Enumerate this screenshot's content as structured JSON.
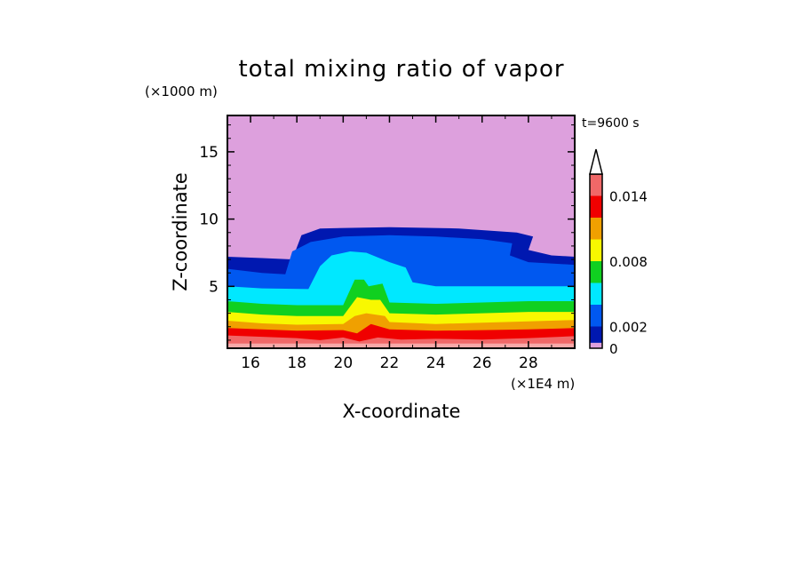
{
  "chart_data": {
    "type": "contour",
    "title": "total mixing ratio of vapor",
    "xlabel": "X-coordinate",
    "ylabel": "Z-coordinate",
    "x_unit": "(×1E4 m)",
    "y_unit": "(×1000 m)",
    "time_label": "t=9600 s",
    "xlim": [
      15,
      30
    ],
    "ylim": [
      0.4,
      17.7
    ],
    "x_ticks": [
      "16",
      "18",
      "20",
      "22",
      "24",
      "26",
      "28"
    ],
    "x_tick_values": [
      16,
      18,
      20,
      22,
      24,
      26,
      28
    ],
    "y_ticks": [
      "5",
      "10",
      "15"
    ],
    "y_tick_values": [
      5,
      10,
      15
    ],
    "colorbar": {
      "levels": [
        0,
        0.0005,
        0.002,
        0.004,
        0.006,
        0.008,
        0.01,
        0.012,
        0.014,
        0.016
      ],
      "tick_labels": [
        "0",
        "0.002",
        "0.008",
        "0.014"
      ],
      "tick_values": [
        0,
        0.002,
        0.008,
        0.014
      ],
      "colors": [
        "#dda0dd",
        "#0018b0",
        "#0058f0",
        "#00e8ff",
        "#10d020",
        "#f8f800",
        "#f0a000",
        "#f00000",
        "#f06868",
        "#f8a8a8"
      ],
      "extend_max": true
    },
    "layers": [
      {
        "level": 0.0005,
        "color": "#0018b0",
        "top": [
          [
            15,
            7.2
          ],
          [
            16.5,
            7.1
          ],
          [
            17.8,
            7.0
          ],
          [
            18.2,
            8.8
          ],
          [
            19,
            9.3
          ],
          [
            22,
            9.4
          ],
          [
            25,
            9.3
          ],
          [
            27.5,
            9.0
          ],
          [
            28.2,
            8.7
          ],
          [
            28,
            7.7
          ],
          [
            29,
            7.3
          ],
          [
            30,
            7.2
          ]
        ]
      },
      {
        "level": 0.002,
        "color": "#0058f0",
        "top": [
          [
            15,
            6.3
          ],
          [
            16.5,
            6.0
          ],
          [
            17.5,
            5.9
          ],
          [
            17.8,
            7.6
          ],
          [
            18.6,
            8.3
          ],
          [
            20,
            8.7
          ],
          [
            22,
            8.8
          ],
          [
            24,
            8.7
          ],
          [
            26,
            8.5
          ],
          [
            27.3,
            8.2
          ],
          [
            27.2,
            7.3
          ],
          [
            28,
            6.8
          ],
          [
            29,
            6.7
          ],
          [
            30,
            6.6
          ]
        ]
      },
      {
        "level": 0.004,
        "color": "#00e8ff",
        "top": [
          [
            15,
            5.0
          ],
          [
            16.5,
            4.85
          ],
          [
            18.5,
            4.8
          ],
          [
            19,
            6.5
          ],
          [
            19.5,
            7.3
          ],
          [
            20.3,
            7.6
          ],
          [
            21,
            7.5
          ],
          [
            22,
            6.8
          ],
          [
            22.7,
            6.4
          ],
          [
            23,
            5.3
          ],
          [
            24,
            5.0
          ],
          [
            26,
            5.0
          ],
          [
            28,
            5.0
          ],
          [
            30,
            5.0
          ]
        ]
      },
      {
        "level": 0.006,
        "color": "#10d020",
        "top": [
          [
            15,
            3.9
          ],
          [
            16.5,
            3.7
          ],
          [
            18,
            3.6
          ],
          [
            20,
            3.6
          ],
          [
            20.5,
            5.5
          ],
          [
            20.9,
            5.5
          ],
          [
            21.1,
            5.0
          ],
          [
            21.7,
            5.2
          ],
          [
            22,
            3.8
          ],
          [
            24,
            3.7
          ],
          [
            26,
            3.8
          ],
          [
            28,
            3.9
          ],
          [
            30,
            3.9
          ]
        ]
      },
      {
        "level": 0.008,
        "color": "#f8f800",
        "top": [
          [
            15,
            3.1
          ],
          [
            16.5,
            2.9
          ],
          [
            18,
            2.8
          ],
          [
            20,
            2.8
          ],
          [
            20.6,
            4.2
          ],
          [
            21.2,
            4.0
          ],
          [
            21.6,
            4.0
          ],
          [
            22,
            3.0
          ],
          [
            24,
            2.9
          ],
          [
            26,
            3.0
          ],
          [
            28,
            3.1
          ],
          [
            30,
            3.1
          ]
        ]
      },
      {
        "level": 0.01,
        "color": "#f0a000",
        "top": [
          [
            15,
            2.45
          ],
          [
            16.5,
            2.25
          ],
          [
            18,
            2.15
          ],
          [
            20,
            2.2
          ],
          [
            20.5,
            2.8
          ],
          [
            21,
            3.0
          ],
          [
            21.8,
            2.8
          ],
          [
            22,
            2.35
          ],
          [
            24,
            2.2
          ],
          [
            26,
            2.3
          ],
          [
            28,
            2.4
          ],
          [
            30,
            2.5
          ]
        ]
      },
      {
        "level": 0.012,
        "color": "#f00000",
        "top": [
          [
            15,
            1.9
          ],
          [
            16.5,
            1.8
          ],
          [
            18,
            1.7
          ],
          [
            20,
            1.75
          ],
          [
            20.6,
            1.5
          ],
          [
            21.2,
            2.2
          ],
          [
            22,
            1.8
          ],
          [
            24,
            1.7
          ],
          [
            26,
            1.75
          ],
          [
            28,
            1.8
          ],
          [
            30,
            1.9
          ]
        ]
      },
      {
        "level": 0.014,
        "color": "#f06868",
        "top": [
          [
            15,
            1.35
          ],
          [
            16.5,
            1.25
          ],
          [
            18,
            1.15
          ],
          [
            19,
            1.0
          ],
          [
            20,
            1.2
          ],
          [
            20.7,
            0.9
          ],
          [
            21.5,
            1.2
          ],
          [
            22.5,
            1.05
          ],
          [
            24,
            1.1
          ],
          [
            26,
            1.05
          ],
          [
            28,
            1.15
          ],
          [
            30,
            1.3
          ]
        ]
      }
    ]
  }
}
